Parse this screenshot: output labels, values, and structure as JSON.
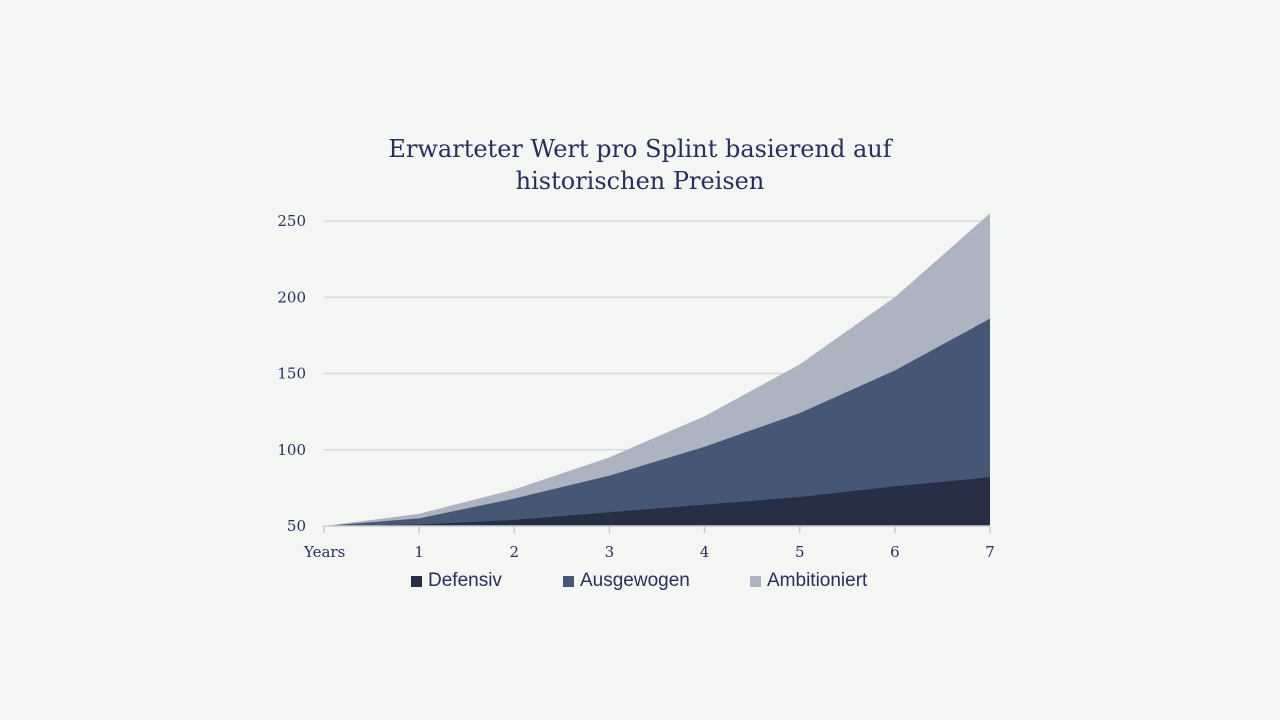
{
  "chart_data": {
    "type": "area",
    "stacked": true,
    "title": "Erwarteter Wert pro Splint basierend auf historischen Preisen",
    "x": [
      0,
      1,
      2,
      3,
      4,
      5,
      6,
      7
    ],
    "x_tick_labels": [
      "Years",
      "1",
      "2",
      "3",
      "4",
      "5",
      "6",
      "7"
    ],
    "y_ticks": [
      50,
      100,
      150,
      200,
      250
    ],
    "ylim": [
      50,
      255
    ],
    "grid": true,
    "legend_position": "bottom",
    "series": [
      {
        "name": "Defensiv",
        "color": "#262f45",
        "values": [
          50,
          51,
          54,
          59,
          64,
          69,
          76,
          82
        ]
      },
      {
        "name": "Ausgewogen",
        "color": "#465675",
        "values": [
          50,
          55,
          68,
          83,
          102,
          124,
          152,
          186
        ]
      },
      {
        "name": "Ambitioniert",
        "color": "#adb3c0",
        "values": [
          50,
          58,
          74,
          95,
          122,
          156,
          200,
          255
        ]
      }
    ]
  }
}
